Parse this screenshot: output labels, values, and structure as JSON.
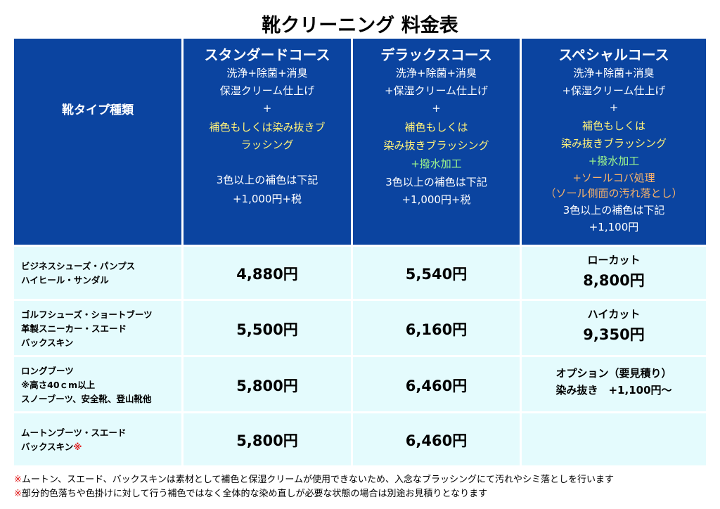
{
  "header": {
    "title": "靴クリーニング 料金表"
  },
  "table": {
    "corner": "靴タイプ種類",
    "courses": [
      {
        "name": "スタンダードコース",
        "lines": [
          "洗浄+除菌+消臭",
          "保湿クリーム仕上げ",
          "+",
          "補色もしくは染み抜きブ",
          "ラッシング",
          "3色以上の補色は下記",
          "+1,000円+税"
        ]
      },
      {
        "name": "デラックスコース",
        "lines": [
          "洗浄+除菌+消臭",
          "+保湿クリーム仕上げ",
          "+",
          "補色もしくは",
          "染み抜きブラッシング",
          "+撥水加工",
          "3色以上の補色は下記",
          "+1,000円+税"
        ]
      },
      {
        "name": "スペシャルコース",
        "lines": [
          "洗浄+除菌+消臭",
          "+保湿クリーム仕上げ",
          "+",
          "補色もしくは",
          "染み抜きブラッシング",
          "+撥水加工",
          "+ソールコバ処理",
          "（ソール側面の汚れ落とし）",
          "3色以上の補色は下記",
          "+1,100円"
        ]
      }
    ],
    "rows": [
      {
        "type": [
          "ビジネスシューズ・パンプス",
          "ハイヒール・サンダル"
        ],
        "prices": [
          "4,880円",
          "5,540円"
        ],
        "special": [
          "ローカット",
          "8,800円"
        ]
      },
      {
        "type": [
          "ゴルフシューズ・ショートブーツ",
          "革製スニーカー・スエード",
          "バックスキン"
        ],
        "prices": [
          "5,500円",
          "6,160円"
        ],
        "special": [
          "ハイカット",
          "9,350円"
        ]
      },
      {
        "type": [
          "ロングブーツ",
          "※高さ40ｃm以上",
          "スノーブーツ、安全靴、登山靴他"
        ],
        "prices": [
          "5,800円",
          "6,460円"
        ],
        "special": [
          "オプション（要見積り）",
          "染み抜き　+1,100円〜"
        ]
      },
      {
        "type": [
          "ムートンブーツ・スエード",
          "バックスキン"
        ],
        "type_mark": "※",
        "prices": [
          "5,800円",
          "6,460円"
        ],
        "special": []
      }
    ]
  },
  "notes": [
    {
      "mark": "※",
      "text": "ムートン、スエード、バックスキンは素材として補色と保湿クリームが使用できないため、入念なブラッシングにて汚れやシミ落としを行います"
    },
    {
      "mark": "※",
      "text": "部分的色落ちや色掛けに対して行う補色ではなく全体的な染め直しが必要な状態の場合は別途お見積りとなります"
    }
  ]
}
